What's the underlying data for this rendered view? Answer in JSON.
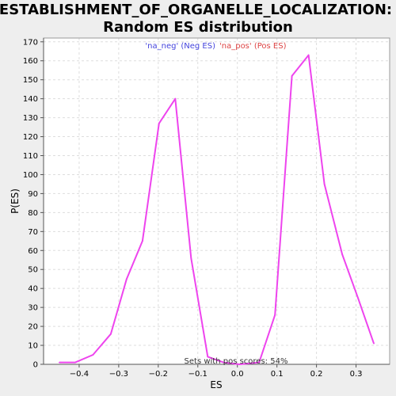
{
  "colors": {
    "background": "#eeeeee",
    "plot_background": "#ffffff",
    "line": "#ee44ee",
    "neg_legend": "#4444dd",
    "pos_legend": "#dd4444",
    "grid": "#dddddd"
  },
  "chart_data": {
    "type": "line",
    "title_line1": "ESTABLISHMENT_OF_ORGANELLE_LOCALIZATION:",
    "title_line2": "Random ES distribution",
    "xlabel": "ES",
    "ylabel": "P(ES)",
    "xlim": [
      -0.49,
      0.385
    ],
    "ylim": [
      0,
      172
    ],
    "xticks": [
      -0.4,
      -0.3,
      -0.2,
      -0.1,
      0.0,
      0.1,
      0.2,
      0.3
    ],
    "xtick_labels": [
      "−0.4",
      "−0.3",
      "−0.2",
      "−0.1",
      "0.0",
      "0.1",
      "0.2",
      "0.3"
    ],
    "yticks": [
      0,
      10,
      20,
      30,
      40,
      50,
      60,
      70,
      80,
      90,
      100,
      110,
      120,
      130,
      140,
      150,
      160,
      170
    ],
    "grid": true,
    "legend": {
      "neg_label": "'na_neg' (Neg ES)",
      "pos_label": "'na_pos' (Pos ES)",
      "placement": "top-center"
    },
    "annotation": "Sets with pos scores: 54%",
    "series": [
      {
        "x": [
          -0.45,
          -0.41,
          -0.365,
          -0.32,
          -0.28,
          -0.24,
          -0.198,
          -0.157,
          -0.117,
          -0.075,
          -0.035,
          0.005,
          0.055,
          0.095,
          0.138,
          0.18,
          0.22,
          0.265,
          0.305,
          0.345
        ],
        "y": [
          1,
          1,
          5,
          16,
          45,
          65,
          127,
          140,
          56,
          4,
          1,
          0,
          1,
          26,
          152,
          163,
          95,
          58,
          35,
          11
        ]
      }
    ]
  }
}
